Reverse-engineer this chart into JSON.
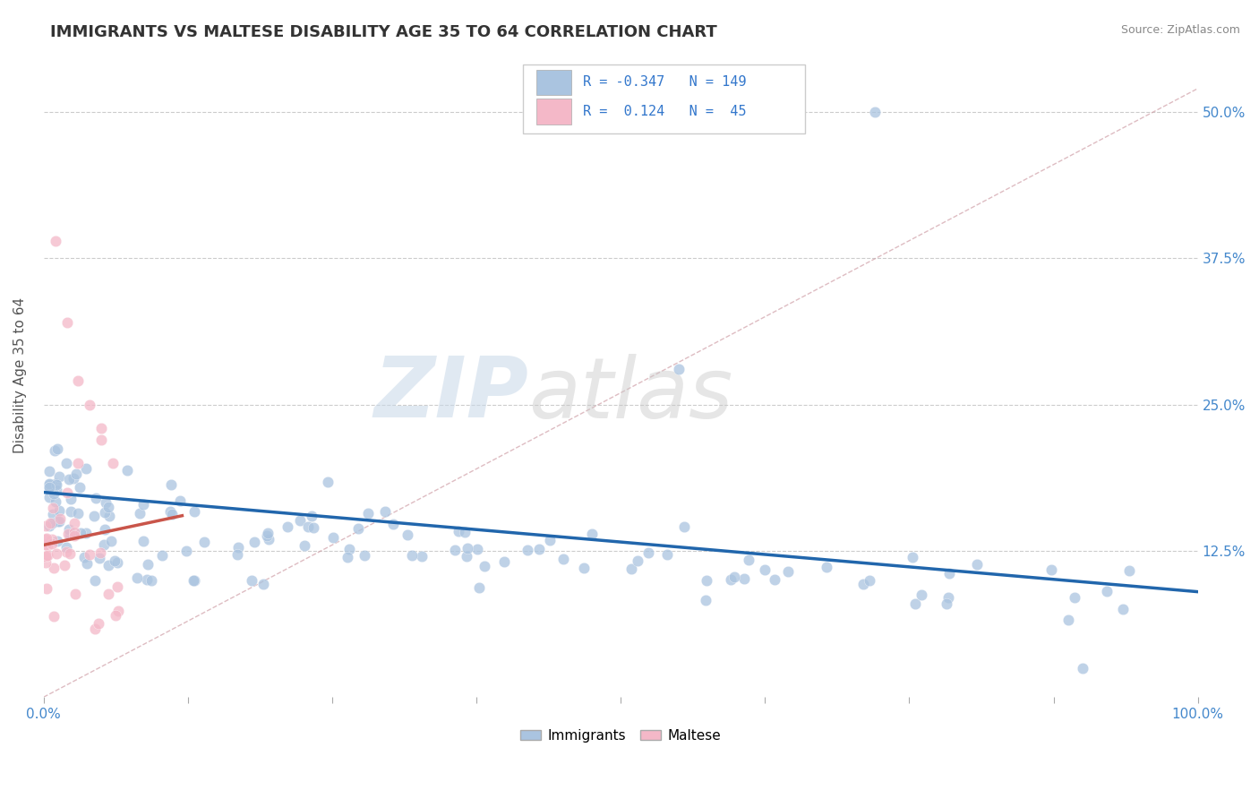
{
  "title": "IMMIGRANTS VS MALTESE DISABILITY AGE 35 TO 64 CORRELATION CHART",
  "source": "Source: ZipAtlas.com",
  "ylabel": "Disability Age 35 to 64",
  "xlim": [
    0.0,
    1.0
  ],
  "ylim": [
    0.0,
    0.55
  ],
  "xticks": [
    0.0,
    0.125,
    0.25,
    0.375,
    0.5,
    0.625,
    0.75,
    0.875,
    1.0
  ],
  "xticklabels": [
    "0.0%",
    "",
    "",
    "",
    "",
    "",
    "",
    "",
    "100.0%"
  ],
  "yticks": [
    0.0,
    0.125,
    0.25,
    0.375,
    0.5
  ],
  "yticklabels": [
    "",
    "12.5%",
    "25.0%",
    "37.5%",
    "50.0%"
  ],
  "r_immigrants": -0.347,
  "n_immigrants": 149,
  "r_maltese": 0.124,
  "n_maltese": 45,
  "immigrant_color": "#aac4e0",
  "maltese_color": "#f4b8c8",
  "immigrant_line_color": "#2166ac",
  "maltese_line_color": "#c9554a",
  "diag_line_color": "#d0a0a8",
  "diag_line_color2": "#c0c0c0",
  "watermark_zip": "ZIP",
  "watermark_atlas": "atlas",
  "legend_immigrants": "Immigrants",
  "legend_maltese": "Maltese",
  "imm_line_x0": 0.0,
  "imm_line_y0": 0.175,
  "imm_line_x1": 1.0,
  "imm_line_y1": 0.09,
  "mal_line_x0": 0.0,
  "mal_line_y0": 0.13,
  "mal_line_x1": 0.12,
  "mal_line_y1": 0.155
}
